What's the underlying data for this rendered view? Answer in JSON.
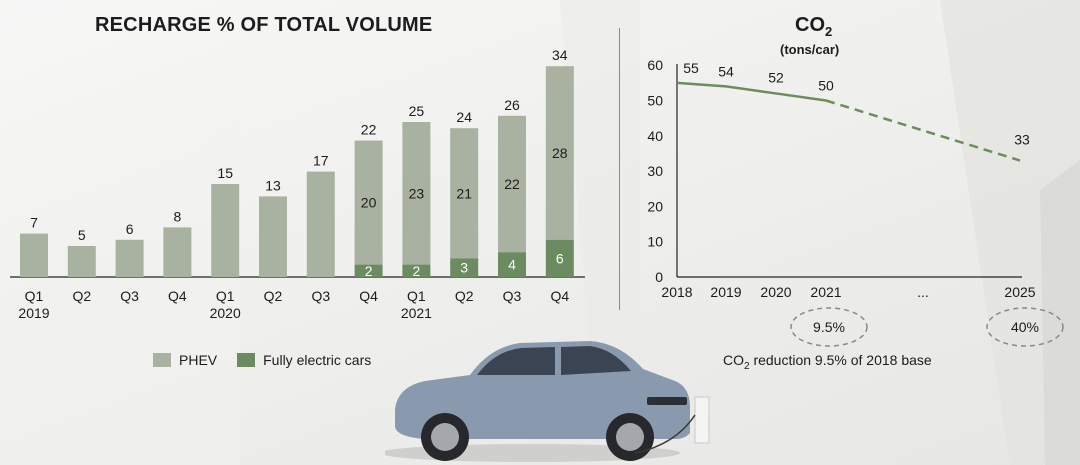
{
  "colors": {
    "phev": "#a9b1a0",
    "electric": "#6c8b61",
    "line": "#6e8c5d",
    "axis": "#222222"
  },
  "left_title": "RECHARGE % OF TOTAL VOLUME",
  "right_title_main": "CO",
  "right_title_sub": "2",
  "right_subtitle": "(tons/car)",
  "legend": {
    "phev": "PHEV",
    "electric": "Fully electric cars"
  },
  "note": {
    "pre": "CO",
    "sub": "2",
    "post": " reduction 9.5% of 2018 base"
  },
  "ellipses": {
    "left": "9.5%",
    "right": "40%"
  },
  "chart_data": [
    {
      "type": "bar",
      "title": "RECHARGE % OF TOTAL VOLUME",
      "categories": [
        "Q1",
        "Q2",
        "Q3",
        "Q4",
        "Q1",
        "Q2",
        "Q3",
        "Q4",
        "Q1",
        "Q2",
        "Q3",
        "Q4"
      ],
      "year_labels": [
        "2019",
        "",
        "",
        "",
        "2020",
        "",
        "",
        "",
        "2021",
        "",
        "",
        ""
      ],
      "series": [
        {
          "name": "PHEV",
          "values": [
            7,
            5,
            6,
            8,
            15,
            13,
            17,
            20,
            23,
            21,
            22,
            28
          ]
        },
        {
          "name": "Fully electric cars",
          "values": [
            0,
            0,
            0,
            0,
            0,
            0,
            0,
            2,
            2,
            3,
            4,
            6
          ]
        }
      ],
      "totals": [
        7,
        5,
        6,
        8,
        15,
        13,
        17,
        22,
        25,
        24,
        26,
        34
      ],
      "ylim": [
        0,
        35
      ]
    },
    {
      "type": "line",
      "title": "CO2",
      "ylabel": "(tons/car)",
      "x": [
        "2018",
        "2019",
        "2020",
        "2021",
        "2025"
      ],
      "x_tick_labels": [
        "2018",
        "2019",
        "2020",
        "2021",
        "...",
        "2025"
      ],
      "values": [
        55,
        54,
        52,
        50,
        33
      ],
      "dashed_from": "2021",
      "yticks": [
        0,
        10,
        20,
        30,
        40,
        50,
        60
      ],
      "ylim": [
        0,
        60
      ]
    }
  ]
}
